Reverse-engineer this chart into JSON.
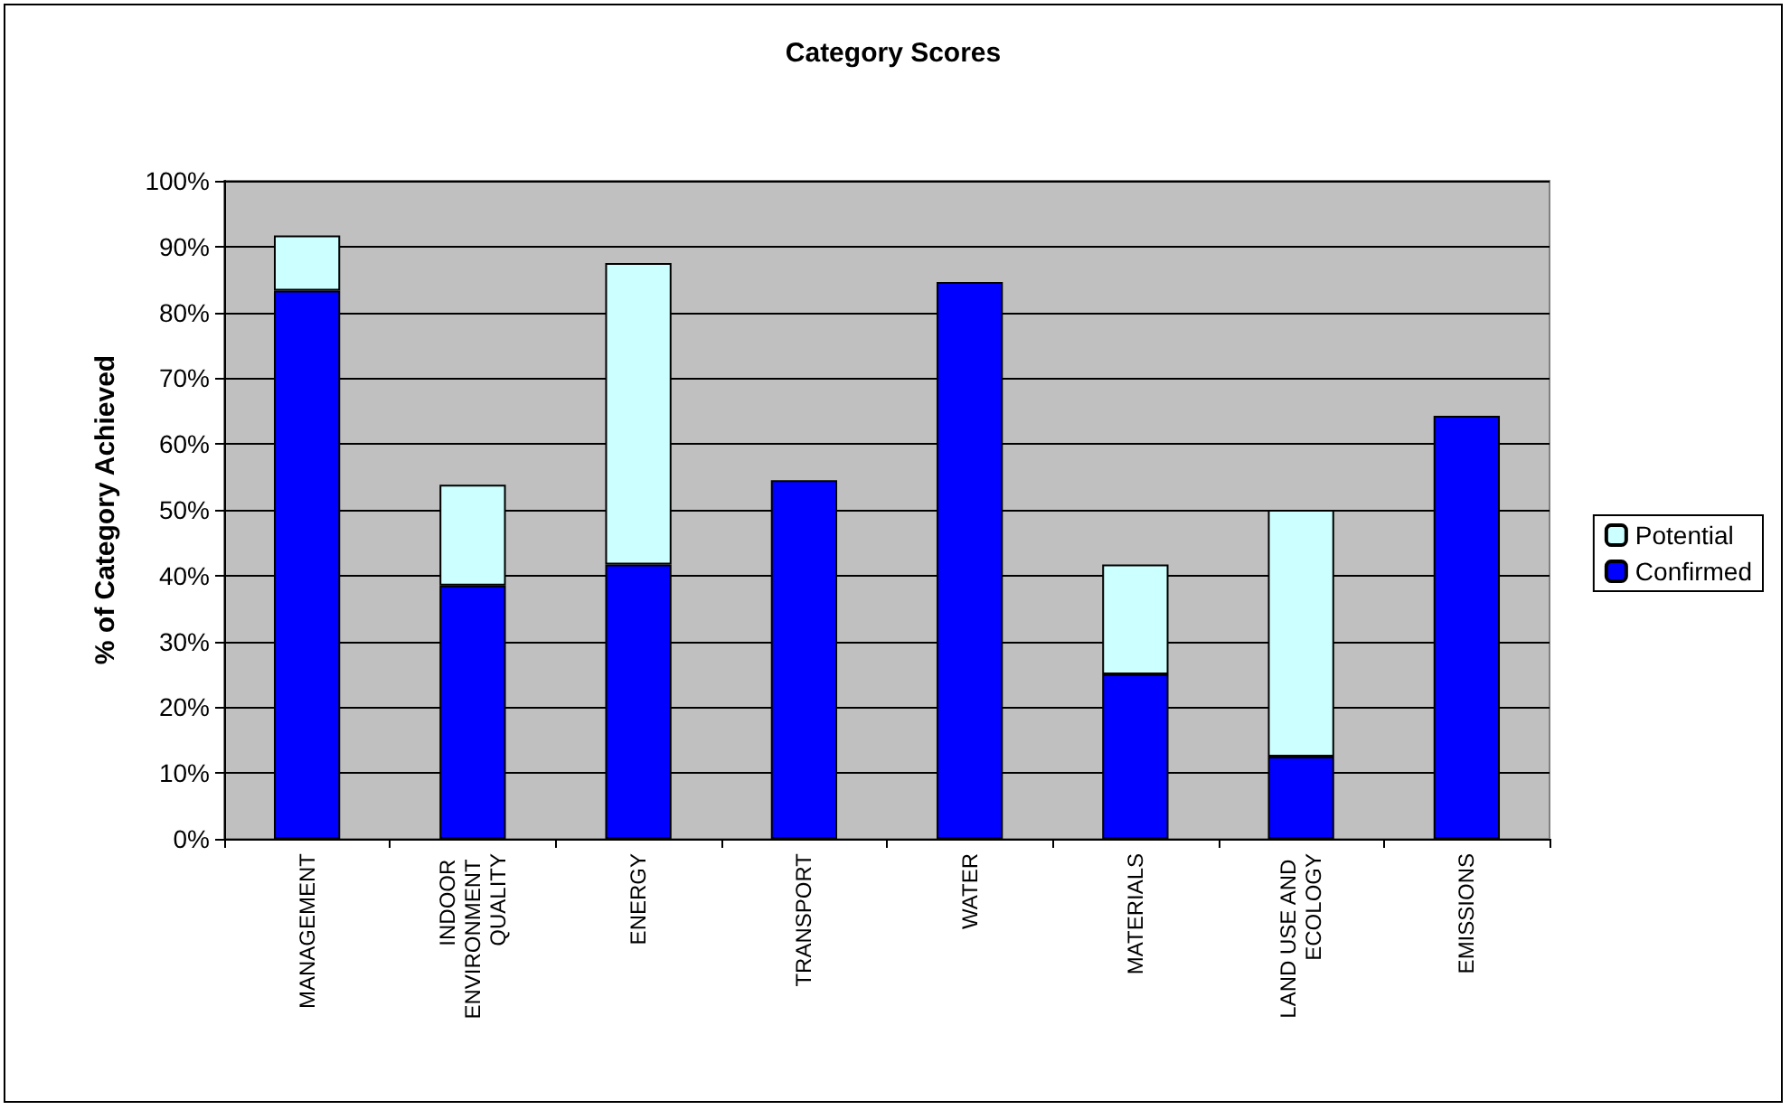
{
  "chart_data": {
    "type": "bar",
    "title": "Category Scores",
    "ylabel": "% of Category Achieved",
    "categories": [
      "MANAGEMENT",
      "INDOOR ENVIRONMENT QUALITY",
      "ENERGY",
      "TRANSPORT",
      "WATER",
      "MATERIALS",
      "LAND USE AND ECOLOGY",
      "EMISSIONS"
    ],
    "stacked": true,
    "series": [
      {
        "name": "Confirmed",
        "color": "#0000ff",
        "values": [
          83.3,
          38.5,
          41.7,
          54.5,
          84.6,
          25.0,
          12.5,
          64.3
        ]
      },
      {
        "name": "Potential",
        "color": "#ccffff",
        "values": [
          8.4,
          15.3,
          45.8,
          null,
          null,
          16.7,
          37.5,
          null
        ]
      }
    ],
    "ylim": [
      0,
      100
    ],
    "yticks": [
      {
        "value": 0,
        "label": "0%"
      },
      {
        "value": 10,
        "label": "10%"
      },
      {
        "value": 20,
        "label": "20%"
      },
      {
        "value": 30,
        "label": "30%"
      },
      {
        "value": 40,
        "label": "40%"
      },
      {
        "value": 50,
        "label": "50%"
      },
      {
        "value": 60,
        "label": "60%"
      },
      {
        "value": 70,
        "label": "70%"
      },
      {
        "value": 80,
        "label": "80%"
      },
      {
        "value": 90,
        "label": "90%"
      },
      {
        "value": 100,
        "label": "100%"
      }
    ],
    "grid": "y",
    "legend": "right"
  }
}
